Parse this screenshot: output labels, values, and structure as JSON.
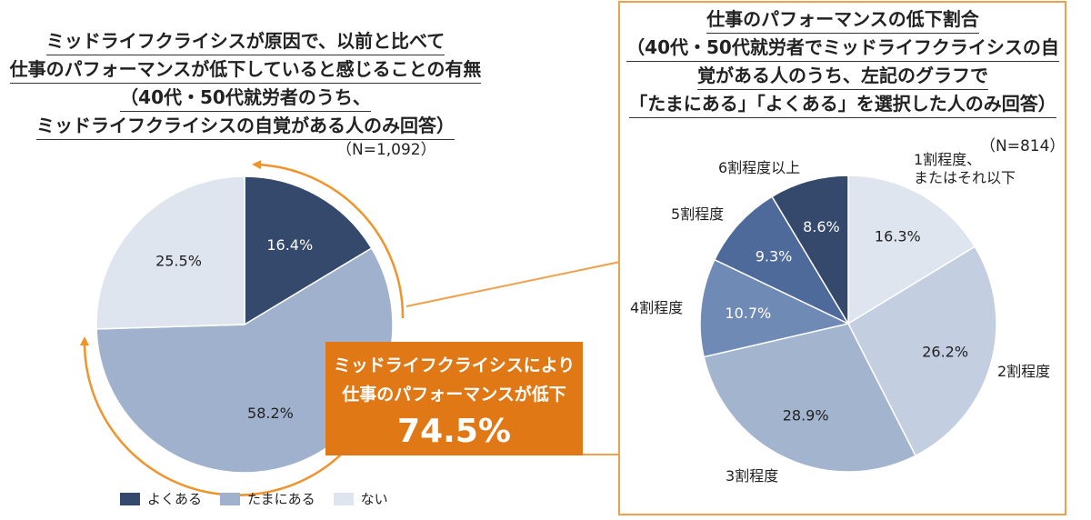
{
  "colors": {
    "panel_border": "#f0a04b",
    "callout_bg": "#e07816",
    "arrow": "#f0932b"
  },
  "left_title_lines": [
    "ミッドライフクライシスが原因で、以前と比べて",
    "仕事のパフォーマンスが低下していると感じることの有無",
    "（40代・50代就労者のうち、",
    "ミッドライフクライシスの自覚がある人のみ回答）"
  ],
  "left_n": "（N=1,092）",
  "right_title_lines": [
    "仕事のパフォーマンスの低下割合",
    "（40代・50代就労者でミッドライフクライシスの自",
    "覚がある人のうち、左記のグラフで",
    "「たまにある」「よくある」を選択した人のみ回答）"
  ],
  "right_n": "（N=814）",
  "callout": {
    "line1": "ミッドライフクライシスにより",
    "line2": "仕事のパフォーマンスが低下",
    "value": "74.5%"
  },
  "chart_data": [
    {
      "type": "pie",
      "start_angle_deg": 0,
      "direction": "clockwise",
      "slices": [
        {
          "label": "よくある",
          "value": 16.4,
          "value_label": "16.4%",
          "color": "#34496b"
        },
        {
          "label": "たまにある",
          "value": 58.2,
          "value_label": "58.2%",
          "color": "#9fb1cd"
        },
        {
          "label": "ない",
          "value": 25.5,
          "value_label": "25.5%",
          "color": "#dfe5ef"
        }
      ],
      "legend": [
        "よくある",
        "たまにある",
        "ない"
      ],
      "legend_position": "bottom"
    },
    {
      "type": "pie",
      "start_angle_deg": 0,
      "direction": "clockwise",
      "slices": [
        {
          "label": "1割程度、またはそれ以下",
          "label_lines": [
            "1割程度、",
            "またはそれ以下"
          ],
          "value": 16.3,
          "value_label": "16.3%",
          "color": "#dfe5ef"
        },
        {
          "label": "2割程度",
          "label_lines": [
            "2割程度"
          ],
          "value": 26.2,
          "value_label": "26.2%",
          "color": "#c3cee0"
        },
        {
          "label": "3割程度",
          "label_lines": [
            "3割程度"
          ],
          "value": 28.9,
          "value_label": "28.9%",
          "color": "#a3b4cf"
        },
        {
          "label": "4割程度",
          "label_lines": [
            "4割程度"
          ],
          "value": 10.7,
          "value_label": "10.7%",
          "color": "#6f8ab5"
        },
        {
          "label": "5割程度",
          "label_lines": [
            "5割程度"
          ],
          "value": 9.3,
          "value_label": "9.3%",
          "color": "#4d6a9b"
        },
        {
          "label": "6割程度以上",
          "label_lines": [
            "6割程度以上"
          ],
          "value": 8.6,
          "value_label": "8.6%",
          "color": "#34496b"
        }
      ]
    }
  ]
}
